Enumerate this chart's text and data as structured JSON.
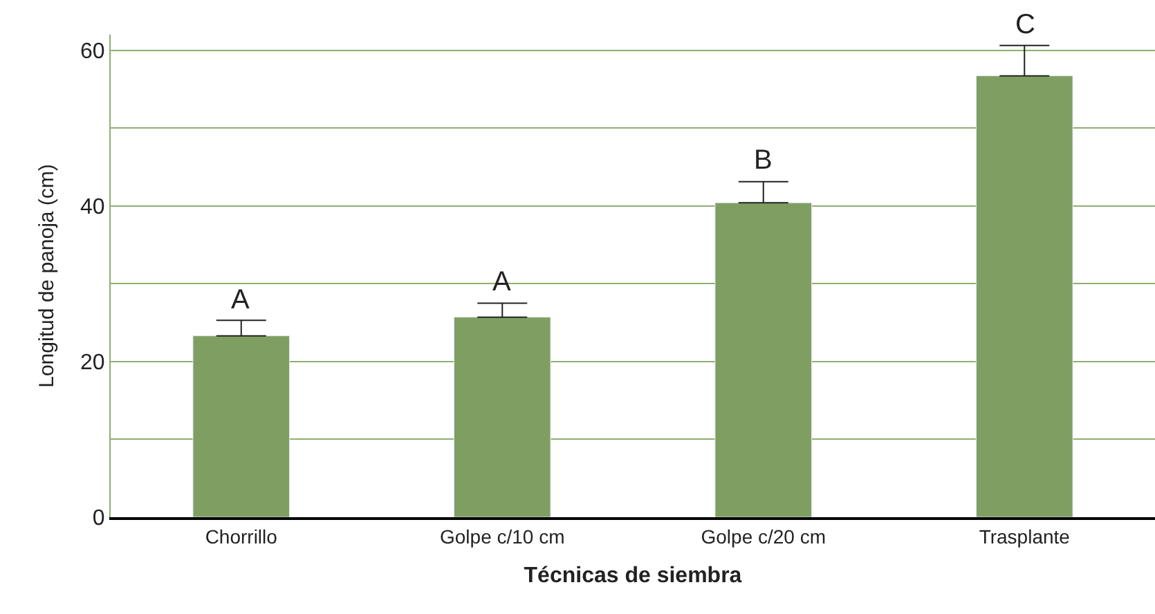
{
  "chart_data": {
    "type": "bar",
    "xlabel": "Técnicas de siembra",
    "ylabel": "Longitud de panoja (cm)",
    "categories": [
      "Chorrillo",
      "Golpe c/10 cm",
      "Golpe c/20 cm",
      "Trasplante"
    ],
    "values": [
      23.3,
      25.7,
      40.4,
      56.7
    ],
    "errors": [
      [
        23.3,
        25.3
      ],
      [
        25.7,
        27.5
      ],
      [
        40.4,
        43.1
      ],
      [
        56.7,
        60.6
      ]
    ],
    "color": "#7f9f62",
    "ylim": [
      0,
      62
    ],
    "yticks": [
      0,
      {
        "value": 10,
        "label": null
      },
      20,
      {
        "value": 30,
        "label": null
      },
      40,
      {
        "value": 50,
        "label": null
      },
      60
    ],
    "grid": "y",
    "legend": false,
    "annotations": [
      {
        "text": "A",
        "x": "Chorrillo",
        "y": 25.3
      },
      {
        "text": "A",
        "x": "Golpe c/10 cm",
        "y": 27.5
      },
      {
        "text": "B",
        "x": "Golpe c/20 cm",
        "y": 43.1
      },
      {
        "text": "C",
        "x": "Trasplante",
        "y": 60.6
      }
    ]
  }
}
